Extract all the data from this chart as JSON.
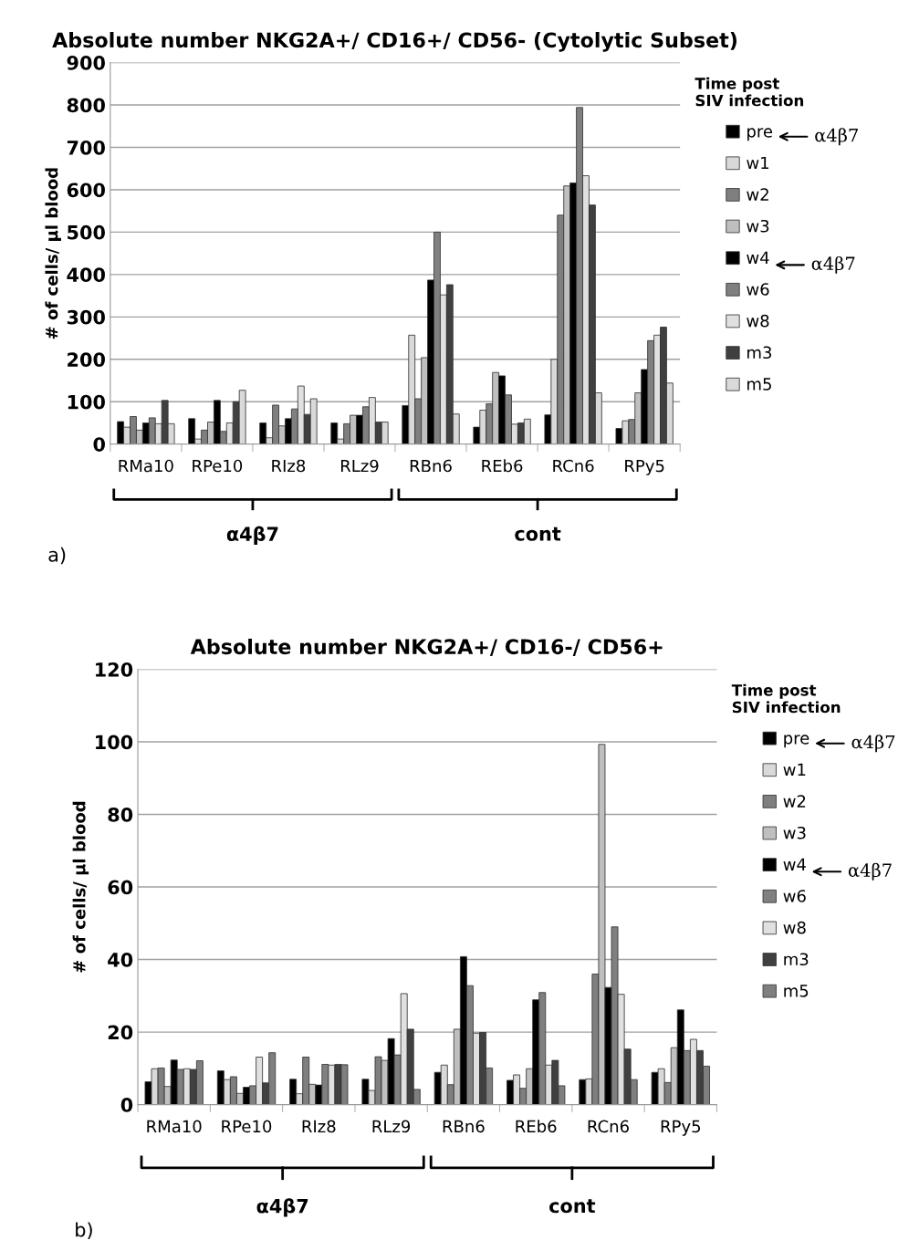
{
  "chart_data": [
    {
      "type": "bar",
      "title": "Absolute number NKG2A+/ CD16+/ CD56- (Cytolytic Subset)",
      "ylabel": "# of cells/ µl blood",
      "legend_title": "Time post\nSIV infection",
      "categories": [
        "RMa10",
        "RPe10",
        "RIz8",
        "RLz9",
        "RBn6",
        "REb6",
        "RCn6",
        "RPy5"
      ],
      "ylim": [
        0,
        900
      ],
      "yticks": [
        0,
        100,
        200,
        300,
        400,
        500,
        600,
        700,
        800,
        900
      ],
      "grid": "y",
      "legend": "right",
      "annotations": [
        "α4β7",
        "α4β7",
        "α4β7",
        "cont",
        "a)"
      ],
      "series": [
        {
          "name": "pre",
          "color": "#000000",
          "values": [
            53,
            60,
            50,
            50,
            91,
            40,
            69,
            37
          ]
        },
        {
          "name": "w1",
          "color": "#d9d9d9",
          "values": [
            40,
            12,
            15,
            12,
            257,
            80,
            200,
            55
          ]
        },
        {
          "name": "w2",
          "color": "#7f7f7f",
          "values": [
            65,
            33,
            92,
            48,
            107,
            95,
            540,
            58
          ]
        },
        {
          "name": "w3",
          "color": "#bfbfbf",
          "values": [
            33,
            52,
            43,
            68,
            204,
            169,
            609,
            121
          ]
        },
        {
          "name": "w4",
          "color": "#000000",
          "values": [
            50,
            103,
            60,
            68,
            387,
            161,
            616,
            176
          ]
        },
        {
          "name": "w6",
          "color": "#808080",
          "values": [
            62,
            30,
            83,
            88,
            500,
            116,
            794,
            244
          ]
        },
        {
          "name": "w8",
          "color": "#e0e0e0",
          "values": [
            48,
            50,
            137,
            110,
            352,
            47,
            633,
            257
          ]
        },
        {
          "name": "m3",
          "color": "#404040",
          "values": [
            103,
            100,
            70,
            52,
            376,
            50,
            564,
            276
          ]
        },
        {
          "name": "m5",
          "color": "#d9d9d9",
          "values": [
            48,
            127,
            107,
            52,
            71,
            59,
            121,
            144
          ]
        }
      ]
    },
    {
      "type": "bar",
      "title": "Absolute number NKG2A+/ CD16-/ CD56+",
      "ylabel": "# of cells/ µl blood",
      "legend_title": "Time post\nSIV infection",
      "categories": [
        "RMa10",
        "RPe10",
        "RIz8",
        "RLz9",
        "RBn6",
        "REb6",
        "RCn6",
        "RPy5"
      ],
      "ylim": [
        0,
        120
      ],
      "yticks": [
        0,
        20,
        40,
        60,
        80,
        100,
        120
      ],
      "grid": "y",
      "legend": "right",
      "annotations": [
        "α4β7",
        "α4β7",
        "α4β7",
        "cont",
        "b)"
      ],
      "series": [
        {
          "name": "pre",
          "color": "#000000",
          "values": [
            6.3,
            9.3,
            7.0,
            7.0,
            8.9,
            6.7,
            6.9,
            8.9
          ]
        },
        {
          "name": "w1",
          "color": "#d9d9d9",
          "values": [
            9.9,
            6.9,
            3.0,
            3.9,
            10.9,
            8.2,
            7.1,
            9.9
          ]
        },
        {
          "name": "w2",
          "color": "#7f7f7f",
          "values": [
            10.1,
            7.7,
            13.1,
            13.2,
            5.5,
            4.5,
            36.0,
            6.1
          ]
        },
        {
          "name": "w3",
          "color": "#bfbfbf",
          "values": [
            5.0,
            3.1,
            5.6,
            12.2,
            20.8,
            9.9,
            99.3,
            15.7
          ]
        },
        {
          "name": "w4",
          "color": "#000000",
          "values": [
            12.3,
            4.8,
            5.4,
            18.2,
            40.8,
            28.9,
            32.3,
            26.1
          ]
        },
        {
          "name": "w6",
          "color": "#808080",
          "values": [
            9.7,
            5.2,
            11.1,
            13.7,
            32.8,
            30.9,
            49.0,
            14.9
          ]
        },
        {
          "name": "w8",
          "color": "#e0e0e0",
          "values": [
            9.9,
            13.1,
            10.9,
            30.6,
            19.7,
            10.9,
            30.4,
            18.0
          ]
        },
        {
          "name": "m3",
          "color": "#404040",
          "values": [
            9.7,
            6.0,
            11.1,
            20.8,
            19.9,
            12.2,
            15.3,
            14.9
          ]
        },
        {
          "name": "m5",
          "color": "#7f7f7f",
          "values": [
            12.1,
            14.3,
            11.0,
            4.2,
            10.1,
            5.2,
            6.9,
            10.6
          ]
        }
      ]
    }
  ]
}
